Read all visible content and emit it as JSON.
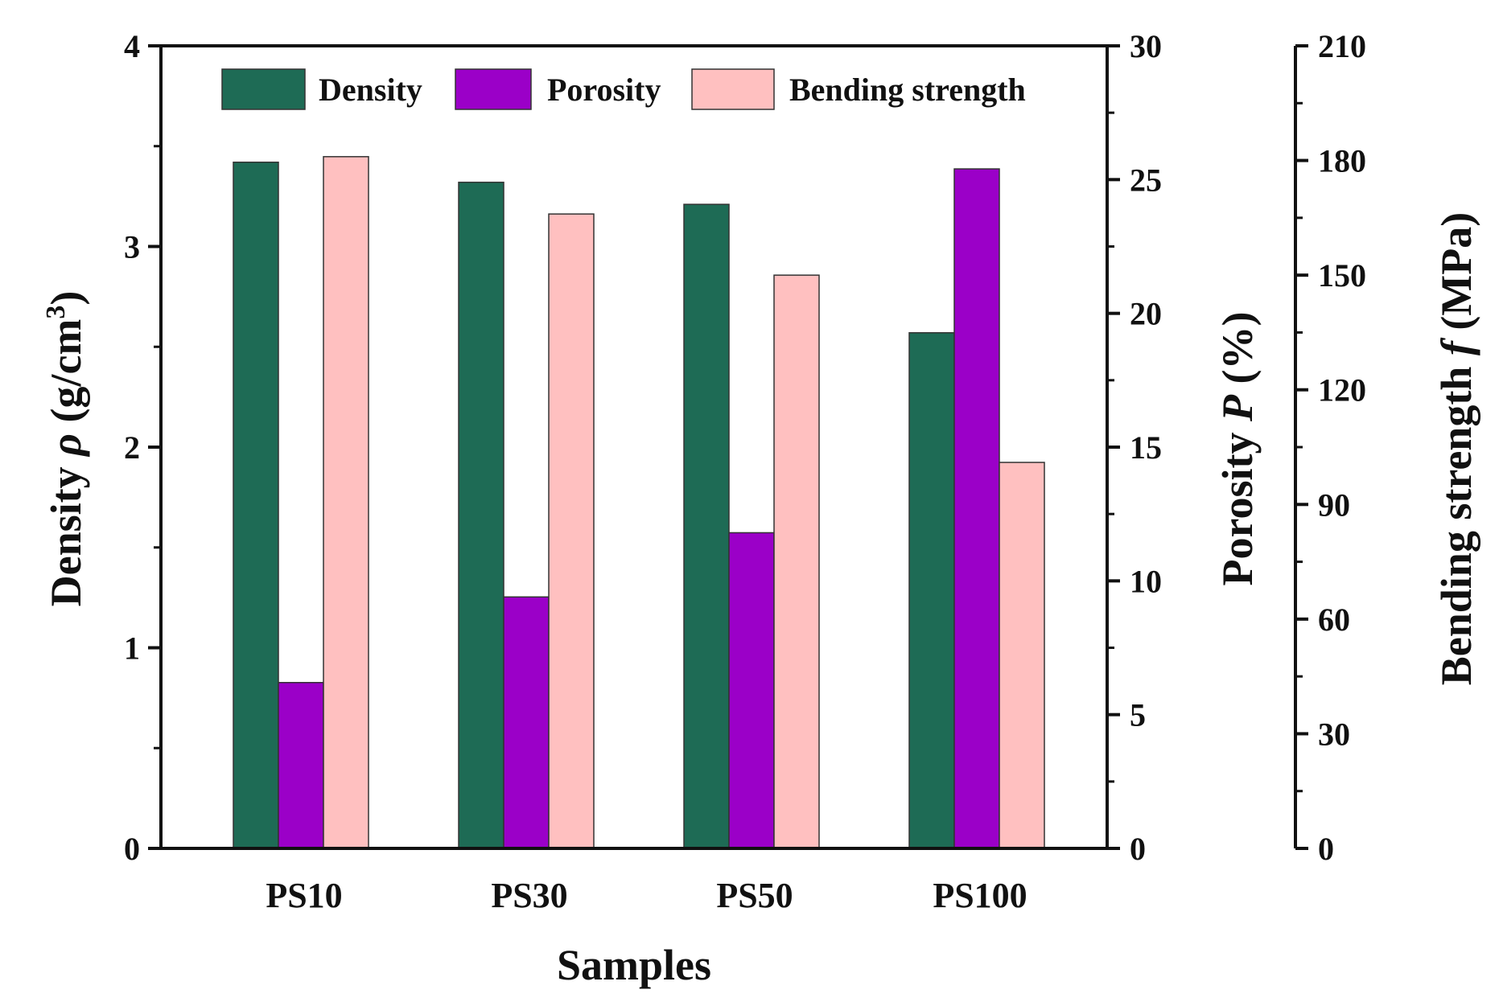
{
  "chart_data": {
    "type": "bar",
    "categories": [
      "PS10",
      "PS30",
      "PS50",
      "PS100"
    ],
    "xlabel": "Samples",
    "series": [
      {
        "name": "Density",
        "axis": "left",
        "color": "#1e6b55",
        "values": [
          3.42,
          3.32,
          3.21,
          2.57
        ]
      },
      {
        "name": "Porosity",
        "axis": "right1",
        "color": "#9b00c8",
        "values": [
          6.2,
          9.4,
          11.8,
          25.4
        ]
      },
      {
        "name": "Bending strength",
        "axis": "right2",
        "color": "#ffc0c0",
        "values": [
          181,
          166,
          150,
          101
        ]
      }
    ],
    "axes": {
      "left": {
        "ylim": [
          0,
          4
        ],
        "ticks": [
          "0",
          "1",
          "2",
          "3",
          "4"
        ],
        "label_prefix": "Density ",
        "label_symbol": "ρ",
        "label_unit": " (g/cm",
        "label_sup": "3",
        "label_close": ")"
      },
      "right1": {
        "ylim": [
          0,
          30
        ],
        "ticks": [
          "0",
          "5",
          "10",
          "15",
          "20",
          "25",
          "30"
        ],
        "label_prefix": "Porosity ",
        "label_symbol": "P",
        "label_unit": " (%)"
      },
      "right2": {
        "ylim": [
          0,
          210
        ],
        "ticks": [
          "0",
          "30",
          "60",
          "90",
          "120",
          "150",
          "180",
          "210"
        ],
        "label_prefix": "Bending strength ",
        "label_symbol": "f",
        "label_unit": " (MPa)"
      }
    },
    "legend": {
      "position": "top",
      "labels": [
        "Density",
        "Porosity",
        "Bending strength"
      ]
    }
  }
}
